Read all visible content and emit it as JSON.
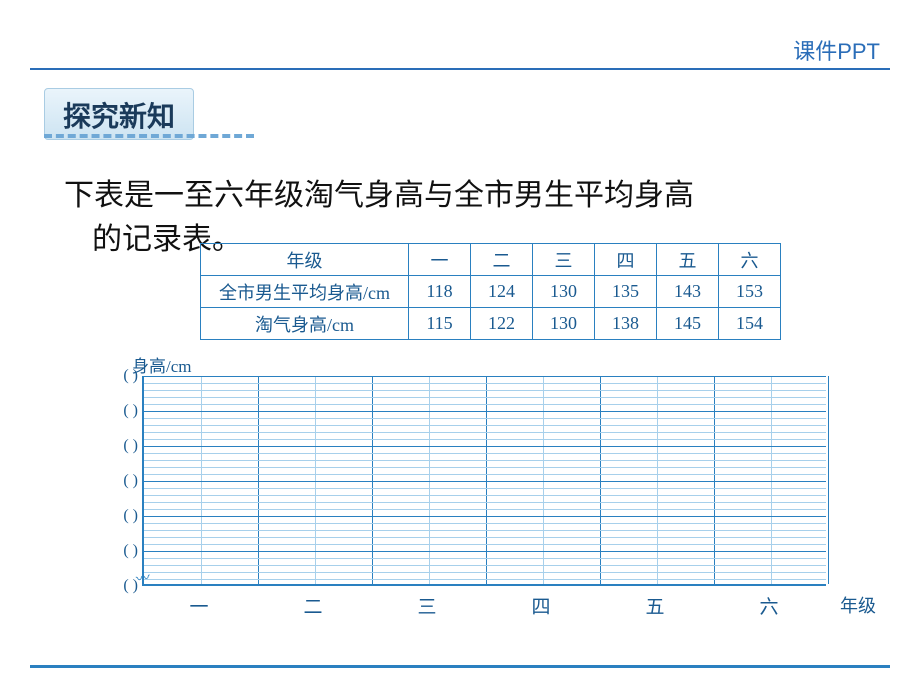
{
  "header": {
    "top_label": "课件PPT",
    "section_title": "探究新知"
  },
  "intro": {
    "line1": "下表是一至六年级淘气身高与全市男生平均身高",
    "line2": "的记录表。"
  },
  "table": {
    "row_headers": [
      "年级",
      "全市男生平均身高/cm",
      "淘气身高/cm"
    ],
    "columns": [
      "一",
      "二",
      "三",
      "四",
      "五",
      "六"
    ],
    "city_avg": [
      118,
      124,
      130,
      135,
      143,
      153
    ],
    "taoqi": [
      115,
      122,
      130,
      138,
      145,
      154
    ]
  },
  "chart": {
    "y_title": "身高/cm",
    "x_title": "年级",
    "x_labels": [
      "一",
      "二",
      "三",
      "四",
      "五",
      "六"
    ],
    "y_tick_placeholders": [
      "(        )",
      "(        )",
      "(        )",
      "(        )",
      "(        )",
      "(        )",
      "(        )"
    ],
    "grid": {
      "major_cols": 6,
      "minor_per_col": 2,
      "major_rows": 6,
      "minor_per_row": 5
    },
    "colors": {
      "axis": "#2a80c0",
      "major": "#2a80c0",
      "minor": "#a7d0eb",
      "text": "#1a5a90",
      "background": "#ffffff"
    }
  }
}
